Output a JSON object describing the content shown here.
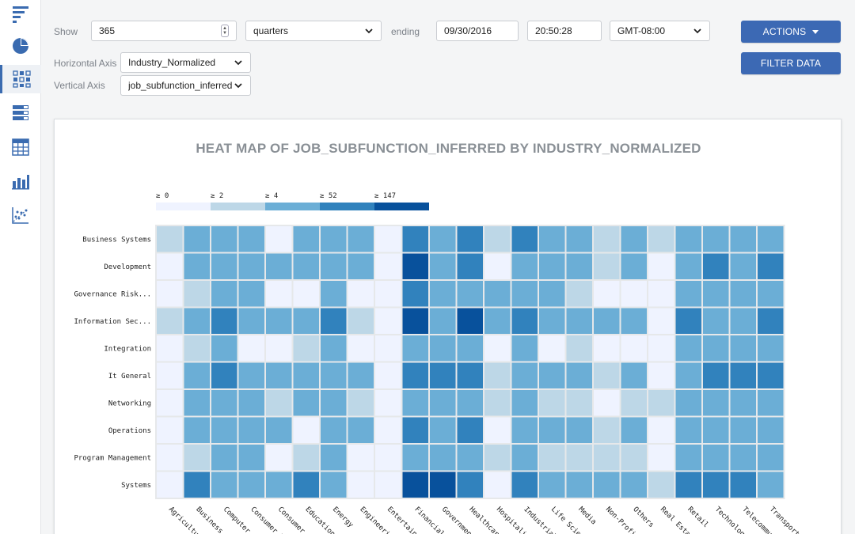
{
  "sidebar": {
    "items": [
      {
        "icon": "bar-list-icon",
        "active": false
      },
      {
        "icon": "pie-chart-icon",
        "active": false
      },
      {
        "icon": "heatmap-grid-icon",
        "active": true
      },
      {
        "icon": "table-list-icon",
        "active": false
      },
      {
        "icon": "calendar-grid-icon",
        "active": false
      },
      {
        "icon": "column-chart-icon",
        "active": false
      },
      {
        "icon": "scatter-plot-icon",
        "active": false
      }
    ]
  },
  "controls": {
    "show_label": "Show",
    "show_value": "365",
    "period_value": "quarters",
    "ending_label": "ending",
    "date_value": "09/30/2016",
    "time_value": "20:50:28",
    "timezone_value": "GMT-08:00",
    "haxis_label": "Horizontal Axis",
    "haxis_value": "Industry_Normalized",
    "vaxis_label": "Vertical Axis",
    "vaxis_value": "job_subfunction_inferred",
    "actions_label": "ACTIONS",
    "filter_label": "FILTER DATA"
  },
  "chart_data": {
    "type": "heatmap",
    "title": "HEAT MAP OF JOB_SUBFUNCTION_INFERRED BY INDUSTRY_NORMALIZED",
    "legend": {
      "labels": [
        "≥ 0",
        "≥ 2",
        "≥ 4",
        "≥ 52",
        "≥ 147"
      ],
      "colors": [
        "#eff3ff",
        "#bdd7e7",
        "#6baed6",
        "#3182bd",
        "#08519c"
      ]
    },
    "x_categories": [
      "Agricultu...",
      "Business S...",
      "Computer ...",
      "Consumer P...",
      "Consumer S...",
      "Education",
      "Energy",
      "Engineerin...",
      "Entertainm...",
      "Financial S...",
      "Government",
      "Healthcare",
      "Hospitalit...",
      "Industrial",
      "Life Scien...",
      "Media",
      "Non-Profit",
      "Others",
      "Real Estat...",
      "Retail",
      "Technology",
      "Telecommun...",
      "Transportat..."
    ],
    "y_categories": [
      "Business Systems",
      "Development",
      "Governance Risk...",
      "Information Sec...",
      "Integration",
      "It General",
      "Networking",
      "Operations",
      "Program Management",
      "Systems"
    ],
    "levels": [
      [
        1,
        2,
        2,
        2,
        0,
        2,
        2,
        2,
        0,
        3,
        2,
        3,
        1,
        3,
        2,
        2,
        1,
        2,
        1,
        2,
        2,
        2,
        2
      ],
      [
        0,
        2,
        2,
        2,
        2,
        2,
        2,
        2,
        0,
        4,
        2,
        3,
        0,
        2,
        2,
        2,
        1,
        2,
        0,
        2,
        3,
        2,
        3
      ],
      [
        0,
        1,
        2,
        2,
        0,
        0,
        2,
        0,
        0,
        3,
        2,
        2,
        2,
        2,
        2,
        1,
        0,
        0,
        0,
        2,
        2,
        2,
        2
      ],
      [
        1,
        2,
        3,
        2,
        2,
        2,
        3,
        1,
        0,
        4,
        2,
        4,
        2,
        3,
        2,
        2,
        2,
        2,
        0,
        3,
        2,
        2,
        3
      ],
      [
        0,
        1,
        2,
        0,
        0,
        1,
        2,
        0,
        0,
        2,
        2,
        2,
        0,
        2,
        0,
        1,
        0,
        0,
        0,
        2,
        2,
        2,
        2
      ],
      [
        0,
        2,
        3,
        2,
        2,
        2,
        2,
        2,
        0,
        3,
        3,
        3,
        1,
        2,
        2,
        2,
        1,
        2,
        0,
        2,
        3,
        3,
        3
      ],
      [
        0,
        2,
        2,
        2,
        1,
        2,
        2,
        1,
        0,
        2,
        2,
        2,
        1,
        2,
        1,
        1,
        0,
        1,
        1,
        2,
        2,
        2,
        2
      ],
      [
        0,
        2,
        2,
        2,
        2,
        0,
        2,
        2,
        0,
        3,
        2,
        3,
        0,
        2,
        2,
        2,
        1,
        2,
        0,
        2,
        2,
        2,
        2
      ],
      [
        0,
        1,
        2,
        2,
        0,
        1,
        2,
        0,
        0,
        2,
        2,
        2,
        1,
        2,
        1,
        1,
        1,
        1,
        0,
        2,
        2,
        2,
        2
      ],
      [
        0,
        3,
        2,
        2,
        2,
        3,
        2,
        0,
        0,
        4,
        4,
        3,
        0,
        3,
        2,
        2,
        2,
        2,
        1,
        3,
        3,
        3,
        2
      ]
    ]
  }
}
